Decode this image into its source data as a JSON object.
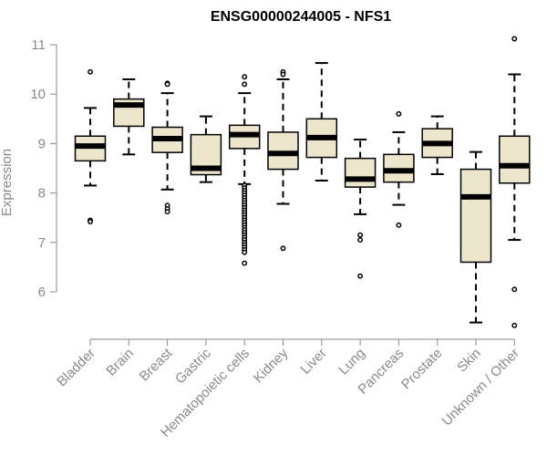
{
  "chart_data": {
    "type": "boxplot",
    "title": "ENSG00000244005 - NFS1",
    "xlabel": "",
    "ylabel": "Expression",
    "ylim": [
      5.2,
      11.2
    ],
    "yticks": [
      6,
      7,
      8,
      9,
      10,
      11
    ],
    "colors": {
      "box_fill": "#ede6cd",
      "box_stroke": "#000000",
      "axis": "#8a8a8a"
    },
    "categories": [
      "Bladder",
      "Brain",
      "Breast",
      "Gastric",
      "Hematopoietic cells",
      "Kidney",
      "Liver",
      "Lung",
      "Pancreas",
      "Prostate",
      "Skin",
      "Unknown / Other"
    ],
    "boxes": [
      {
        "name": "Bladder",
        "whisker_low": 8.15,
        "q1": 8.65,
        "median": 8.95,
        "q3": 9.15,
        "whisker_high": 9.72,
        "outliers": [
          10.45,
          7.45,
          7.42
        ]
      },
      {
        "name": "Brain",
        "whisker_low": 8.78,
        "q1": 9.35,
        "median": 9.78,
        "q3": 9.9,
        "whisker_high": 10.3,
        "outliers": []
      },
      {
        "name": "Breast",
        "whisker_low": 8.07,
        "q1": 8.82,
        "median": 9.1,
        "q3": 9.33,
        "whisker_high": 10.02,
        "outliers": [
          10.22,
          10.2,
          7.75,
          7.68,
          7.62
        ]
      },
      {
        "name": "Gastric",
        "whisker_low": 8.22,
        "q1": 8.37,
        "median": 8.5,
        "q3": 9.18,
        "whisker_high": 9.55,
        "outliers": []
      },
      {
        "name": "Hematopoietic cells",
        "whisker_low": 8.18,
        "q1": 8.9,
        "median": 9.18,
        "q3": 9.37,
        "whisker_high": 10.02,
        "outliers": [
          10.35,
          10.2,
          8.15,
          8.1,
          8.05,
          8.0,
          7.95,
          7.9,
          7.85,
          7.8,
          7.75,
          7.7,
          7.65,
          7.6,
          7.55,
          7.5,
          7.45,
          7.4,
          7.35,
          7.3,
          7.25,
          7.2,
          7.15,
          7.1,
          7.05,
          7.0,
          6.95,
          6.9,
          6.85,
          6.8,
          6.58
        ]
      },
      {
        "name": "Kidney",
        "whisker_low": 7.78,
        "q1": 8.48,
        "median": 8.8,
        "q3": 9.23,
        "whisker_high": 10.3,
        "outliers": [
          10.45,
          10.4,
          6.88
        ]
      },
      {
        "name": "Liver",
        "whisker_low": 8.25,
        "q1": 8.72,
        "median": 9.12,
        "q3": 9.5,
        "whisker_high": 10.63,
        "outliers": []
      },
      {
        "name": "Lung",
        "whisker_low": 7.57,
        "q1": 8.12,
        "median": 8.28,
        "q3": 8.7,
        "whisker_high": 9.08,
        "outliers": [
          7.15,
          7.05,
          6.32
        ]
      },
      {
        "name": "Pancreas",
        "whisker_low": 7.76,
        "q1": 8.22,
        "median": 8.45,
        "q3": 8.78,
        "whisker_high": 9.23,
        "outliers": [
          9.6,
          7.35
        ]
      },
      {
        "name": "Prostate",
        "whisker_low": 8.38,
        "q1": 8.72,
        "median": 9.0,
        "q3": 9.3,
        "whisker_high": 9.55,
        "outliers": []
      },
      {
        "name": "Skin",
        "whisker_low": 5.38,
        "q1": 6.6,
        "median": 7.92,
        "q3": 8.48,
        "whisker_high": 8.83,
        "outliers": []
      },
      {
        "name": "Unknown / Other",
        "whisker_low": 7.05,
        "q1": 8.2,
        "median": 8.55,
        "q3": 9.15,
        "whisker_high": 10.4,
        "outliers": [
          11.12,
          6.05,
          5.32
        ]
      }
    ]
  }
}
